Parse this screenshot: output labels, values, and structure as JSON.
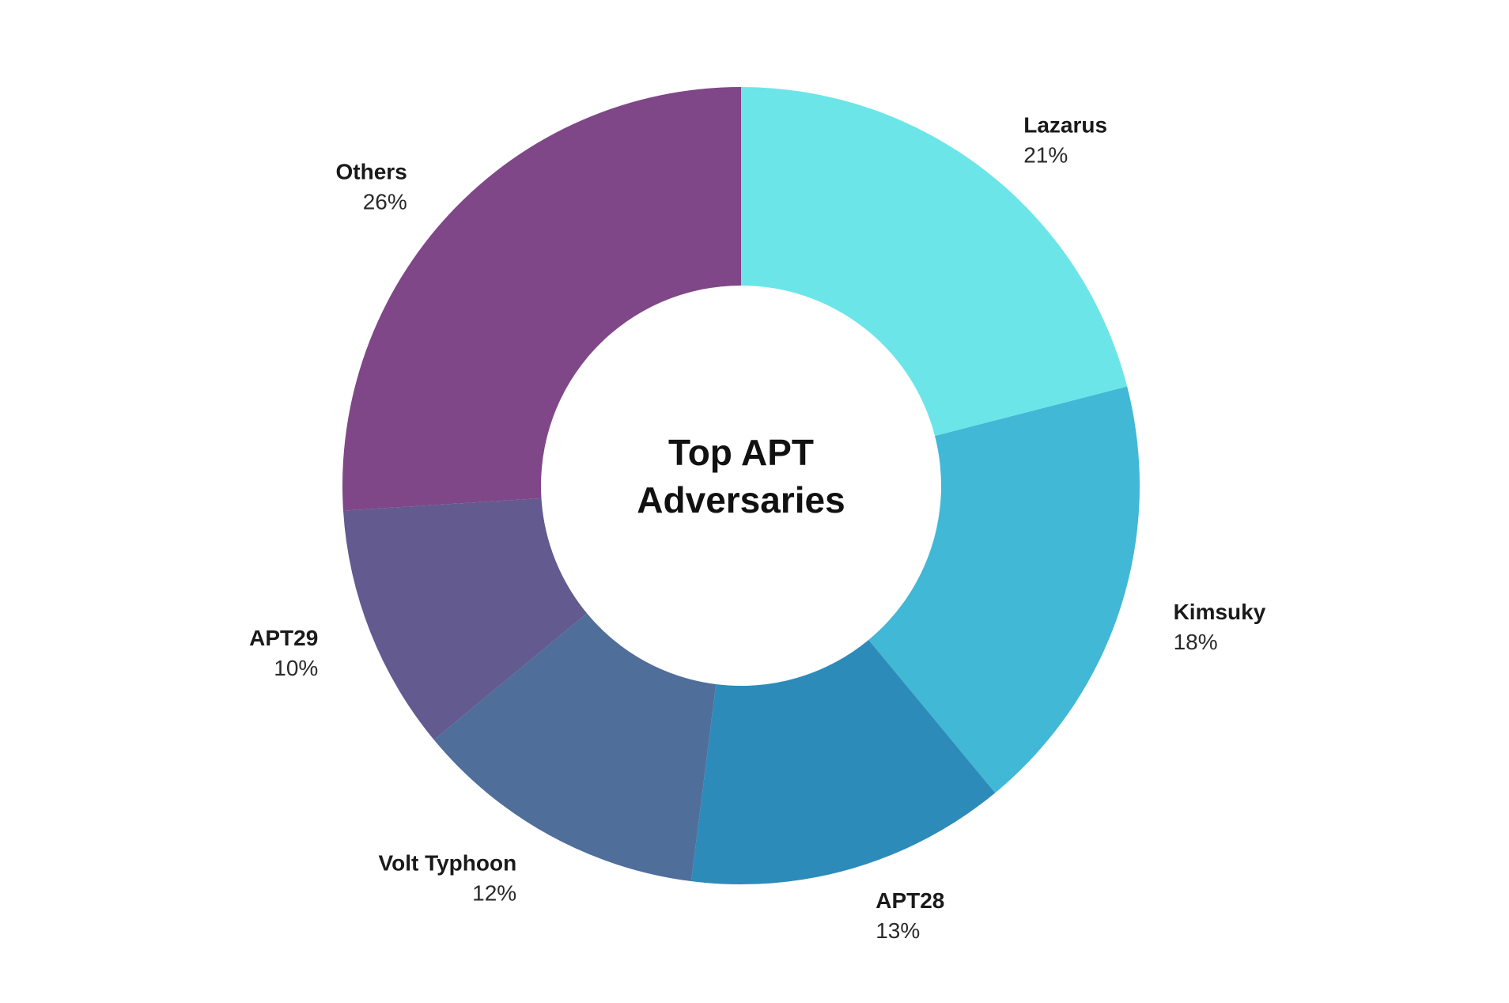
{
  "chart_data": {
    "type": "pie",
    "variant": "donut",
    "title": "Top APT Adversaries",
    "title_lines": [
      "Top APT",
      "Adversaries"
    ],
    "slices": [
      {
        "label": "Lazarus",
        "value": 21,
        "display": "21%",
        "color": "#6CE5E8"
      },
      {
        "label": "Kimsuky",
        "value": 18,
        "display": "18%",
        "color": "#41B8D5"
      },
      {
        "label": "APT28",
        "value": 13,
        "display": "13%",
        "color": "#2D8BBA"
      },
      {
        "label": "Volt Typhoon",
        "value": 12,
        "display": "12%",
        "color": "#506E9A"
      },
      {
        "label": "APT29",
        "value": 10,
        "display": "10%",
        "color": "#635A8F"
      },
      {
        "label": "Others",
        "value": 26,
        "display": "26%",
        "color": "#7F4788"
      }
    ],
    "start": "top",
    "direction": "clockwise",
    "legend": "none",
    "labels": "outside"
  }
}
